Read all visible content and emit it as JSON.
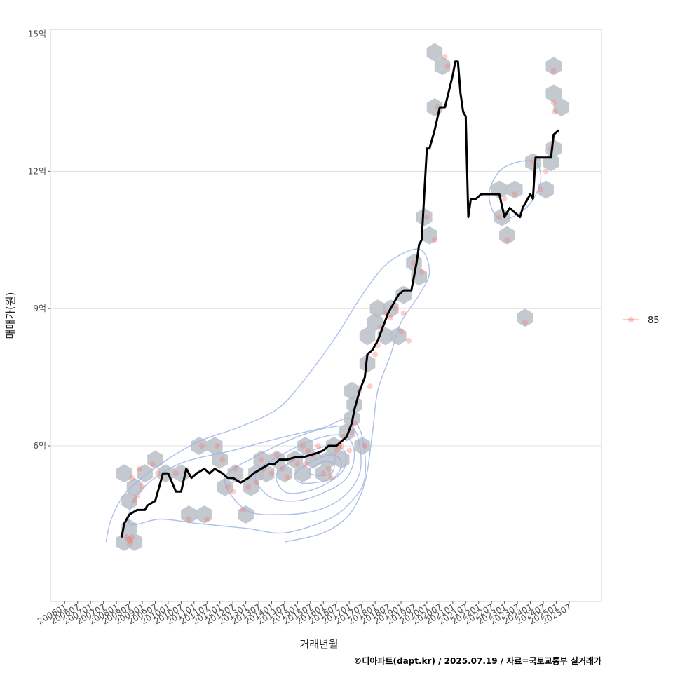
{
  "chart_data": {
    "type": "scatter",
    "xlabel": "거래년월",
    "ylabel": "매매가(원)",
    "caption": "©디아파트(dapt.kr) / 2025.07.19 / 자료=국토교통부 실거래가",
    "x_ticks": [
      "200601",
      "200607",
      "200701",
      "200707",
      "200801",
      "200807",
      "200901",
      "200907",
      "201001",
      "201007",
      "201101",
      "201107",
      "201201",
      "201207",
      "201301",
      "201307",
      "201401",
      "201407",
      "201501",
      "201507",
      "201601",
      "201607",
      "201701",
      "201707",
      "201801",
      "201807",
      "201901",
      "201907",
      "202001",
      "202007",
      "202101",
      "202107",
      "202201",
      "202207",
      "202301",
      "202307",
      "202401",
      "202407",
      "202501",
      "202507"
    ],
    "y_ticks": [
      {
        "value": 6,
        "label": "6억"
      },
      {
        "value": 9,
        "label": "9억"
      },
      {
        "value": 12,
        "label": "12억"
      },
      {
        "value": 15,
        "label": "15억"
      }
    ],
    "ylim": [
      2.6,
      15.1
    ],
    "xlim": [
      2005.25,
      2026.55
    ],
    "grid": true,
    "legend": {
      "position": "right",
      "entries": [
        {
          "name": "85",
          "color": "#F8766D"
        }
      ]
    },
    "points": [
      [
        2008.2,
        4.0
      ],
      [
        2008.3,
        3.95
      ],
      [
        2008.4,
        4.0
      ],
      [
        2008.35,
        3.9
      ],
      [
        2008.5,
        4.8
      ],
      [
        2008.6,
        4.9
      ],
      [
        2008.4,
        5.3
      ],
      [
        2008.7,
        5.5
      ],
      [
        2008.8,
        5.1
      ],
      [
        2009.2,
        5.6
      ],
      [
        2009.4,
        5.4
      ],
      [
        2010.1,
        5.4
      ],
      [
        2010.6,
        4.4
      ],
      [
        2011.1,
        6.0
      ],
      [
        2011.3,
        4.4
      ],
      [
        2011.7,
        6.0
      ],
      [
        2011.9,
        5.7
      ],
      [
        2012.1,
        5.1
      ],
      [
        2012.3,
        5.0
      ],
      [
        2012.4,
        5.5
      ],
      [
        2012.7,
        4.6
      ],
      [
        2012.9,
        5.1
      ],
      [
        2013.2,
        5.2
      ],
      [
        2013.4,
        5.7
      ],
      [
        2013.5,
        5.5
      ],
      [
        2013.8,
        5.4
      ],
      [
        2014.0,
        5.8
      ],
      [
        2014.2,
        5.5
      ],
      [
        2014.4,
        5.3
      ],
      [
        2014.6,
        5.7
      ],
      [
        2014.8,
        5.6
      ],
      [
        2015.0,
        6.0
      ],
      [
        2015.1,
        5.6
      ],
      [
        2015.2,
        5.9
      ],
      [
        2015.4,
        5.8
      ],
      [
        2015.6,
        6.0
      ],
      [
        2015.8,
        5.4
      ],
      [
        2016.0,
        5.5
      ],
      [
        2016.1,
        5.3
      ],
      [
        2016.3,
        5.9
      ],
      [
        2016.4,
        6.0
      ],
      [
        2016.5,
        6.0
      ],
      [
        2016.6,
        6.2
      ],
      [
        2016.8,
        5.9
      ],
      [
        2016.9,
        6.3
      ],
      [
        2017.0,
        6.5
      ],
      [
        2017.2,
        7.2
      ],
      [
        2017.4,
        6.0
      ],
      [
        2017.6,
        7.3
      ],
      [
        2017.8,
        8.0
      ],
      [
        2017.9,
        8.2
      ],
      [
        2018.0,
        8.6
      ],
      [
        2018.2,
        8.9
      ],
      [
        2018.4,
        8.8
      ],
      [
        2018.6,
        9.0
      ],
      [
        2018.8,
        8.5
      ],
      [
        2018.9,
        8.9
      ],
      [
        2019.1,
        8.3
      ],
      [
        2019.3,
        10.0
      ],
      [
        2019.6,
        9.8
      ],
      [
        2019.8,
        11.0
      ],
      [
        2020.1,
        10.5
      ],
      [
        2020.2,
        13.4
      ],
      [
        2020.5,
        14.5
      ],
      [
        2020.6,
        14.3
      ],
      [
        2022.6,
        11.0
      ],
      [
        2022.8,
        11.4
      ],
      [
        2022.9,
        10.5
      ],
      [
        2023.2,
        11.5
      ],
      [
        2023.6,
        8.7
      ],
      [
        2023.9,
        12.2
      ],
      [
        2024.2,
        11.6
      ],
      [
        2024.4,
        12.0
      ],
      [
        2024.6,
        12.5
      ],
      [
        2024.7,
        13.5
      ],
      [
        2024.75,
        13.3
      ],
      [
        2024.7,
        14.2
      ]
    ],
    "hexbins": [
      [
        2008.1,
        3.9
      ],
      [
        2008.3,
        4.2
      ],
      [
        2008.5,
        3.9
      ],
      [
        2008.3,
        4.8
      ],
      [
        2008.1,
        5.4
      ],
      [
        2008.5,
        5.1
      ],
      [
        2008.9,
        5.4
      ],
      [
        2009.3,
        5.7
      ],
      [
        2009.7,
        5.4
      ],
      [
        2010.3,
        5.4
      ],
      [
        2010.6,
        4.5
      ],
      [
        2011.0,
        6.0
      ],
      [
        2011.2,
        4.5
      ],
      [
        2011.6,
        6.0
      ],
      [
        2011.8,
        5.7
      ],
      [
        2012.0,
        5.1
      ],
      [
        2012.4,
        5.4
      ],
      [
        2012.8,
        4.5
      ],
      [
        2013.0,
        5.1
      ],
      [
        2013.2,
        5.4
      ],
      [
        2013.4,
        5.7
      ],
      [
        2013.6,
        5.4
      ],
      [
        2014.0,
        5.7
      ],
      [
        2014.3,
        5.4
      ],
      [
        2014.7,
        5.7
      ],
      [
        2015.0,
        5.4
      ],
      [
        2015.1,
        6.0
      ],
      [
        2015.4,
        5.7
      ],
      [
        2015.8,
        5.4
      ],
      [
        2016.0,
        5.7
      ],
      [
        2016.2,
        6.0
      ],
      [
        2016.5,
        5.7
      ],
      [
        2016.7,
        6.3
      ],
      [
        2016.9,
        6.6
      ],
      [
        2016.9,
        7.2
      ],
      [
        2017.0,
        6.9
      ],
      [
        2017.3,
        6.0
      ],
      [
        2017.5,
        7.8
      ],
      [
        2017.5,
        8.4
      ],
      [
        2017.8,
        8.7
      ],
      [
        2017.9,
        9.0
      ],
      [
        2018.2,
        8.4
      ],
      [
        2018.4,
        9.0
      ],
      [
        2018.7,
        8.4
      ],
      [
        2018.9,
        9.3
      ],
      [
        2019.3,
        10.0
      ],
      [
        2019.5,
        9.7
      ],
      [
        2019.7,
        11.0
      ],
      [
        2019.9,
        10.6
      ],
      [
        2020.1,
        13.4
      ],
      [
        2020.1,
        14.6
      ],
      [
        2020.4,
        14.3
      ],
      [
        2022.6,
        11.6
      ],
      [
        2022.7,
        11.0
      ],
      [
        2022.9,
        10.6
      ],
      [
        2023.2,
        11.6
      ],
      [
        2023.6,
        8.8
      ],
      [
        2023.9,
        12.2
      ],
      [
        2024.4,
        11.6
      ],
      [
        2024.6,
        12.2
      ],
      [
        2024.7,
        12.5
      ],
      [
        2024.7,
        13.7
      ],
      [
        2024.7,
        14.3
      ],
      [
        2025.0,
        13.4
      ]
    ],
    "line": [
      [
        2008.0,
        4.0
      ],
      [
        2008.1,
        4.3
      ],
      [
        2008.3,
        4.5
      ],
      [
        2008.6,
        4.6
      ],
      [
        2008.9,
        4.6
      ],
      [
        2009.0,
        4.7
      ],
      [
        2009.3,
        4.8
      ],
      [
        2009.5,
        5.2
      ],
      [
        2009.6,
        5.4
      ],
      [
        2009.8,
        5.4
      ],
      [
        2010.1,
        5.0
      ],
      [
        2010.3,
        5.0
      ],
      [
        2010.5,
        5.5
      ],
      [
        2010.7,
        5.3
      ],
      [
        2010.9,
        5.4
      ],
      [
        2011.2,
        5.5
      ],
      [
        2011.4,
        5.4
      ],
      [
        2011.6,
        5.5
      ],
      [
        2011.9,
        5.4
      ],
      [
        2012.1,
        5.3
      ],
      [
        2012.3,
        5.3
      ],
      [
        2012.6,
        5.2
      ],
      [
        2012.9,
        5.3
      ],
      [
        2013.1,
        5.4
      ],
      [
        2013.4,
        5.5
      ],
      [
        2013.7,
        5.6
      ],
      [
        2013.9,
        5.6
      ],
      [
        2014.1,
        5.7
      ],
      [
        2014.4,
        5.7
      ],
      [
        2014.7,
        5.75
      ],
      [
        2015.0,
        5.75
      ],
      [
        2015.3,
        5.8
      ],
      [
        2015.6,
        5.85
      ],
      [
        2015.8,
        5.9
      ],
      [
        2016.0,
        6.0
      ],
      [
        2016.3,
        6.0
      ],
      [
        2016.5,
        6.1
      ],
      [
        2016.7,
        6.2
      ],
      [
        2016.9,
        6.5
      ],
      [
        2017.0,
        6.8
      ],
      [
        2017.2,
        7.2
      ],
      [
        2017.4,
        7.5
      ],
      [
        2017.5,
        8.0
      ],
      [
        2017.7,
        8.1
      ],
      [
        2017.9,
        8.3
      ],
      [
        2018.1,
        8.6
      ],
      [
        2018.3,
        8.9
      ],
      [
        2018.5,
        9.1
      ],
      [
        2018.7,
        9.3
      ],
      [
        2018.9,
        9.4
      ],
      [
        2019.2,
        9.4
      ],
      [
        2019.4,
        10.0
      ],
      [
        2019.5,
        10.4
      ],
      [
        2019.6,
        10.5
      ],
      [
        2019.7,
        11.5
      ],
      [
        2019.8,
        12.5
      ],
      [
        2019.9,
        12.5
      ],
      [
        2020.1,
        12.9
      ],
      [
        2020.3,
        13.4
      ],
      [
        2020.5,
        13.4
      ],
      [
        2020.8,
        14.1
      ],
      [
        2020.9,
        14.4
      ],
      [
        2021.0,
        14.4
      ],
      [
        2021.1,
        13.7
      ],
      [
        2021.2,
        13.3
      ],
      [
        2021.3,
        13.2
      ],
      [
        2021.4,
        11.0
      ],
      [
        2021.5,
        11.4
      ],
      [
        2021.7,
        11.4
      ],
      [
        2021.9,
        11.5
      ],
      [
        2022.1,
        11.5
      ],
      [
        2022.4,
        11.5
      ],
      [
        2022.6,
        11.5
      ],
      [
        2022.8,
        11.0
      ],
      [
        2023.0,
        11.2
      ],
      [
        2023.2,
        11.1
      ],
      [
        2023.4,
        11.0
      ],
      [
        2023.5,
        11.2
      ],
      [
        2023.8,
        11.5
      ],
      [
        2023.9,
        11.4
      ],
      [
        2024.0,
        12.3
      ],
      [
        2024.3,
        12.3
      ],
      [
        2024.6,
        12.3
      ],
      [
        2024.7,
        12.8
      ],
      [
        2024.9,
        12.9
      ]
    ],
    "density_contours": [
      [
        [
          2007.4,
          3.9
        ],
        [
          2007.6,
          4.4
        ],
        [
          2008.2,
          5.0
        ],
        [
          2009.5,
          5.6
        ],
        [
          2011.0,
          6.1
        ],
        [
          2012.5,
          6.4
        ],
        [
          2014.0,
          6.8
        ],
        [
          2015.0,
          7.4
        ],
        [
          2016.3,
          8.4
        ],
        [
          2017.3,
          9.3
        ],
        [
          2018.3,
          10.0
        ],
        [
          2019.5,
          10.3
        ],
        [
          2019.9,
          9.8
        ],
        [
          2019.5,
          9.3
        ],
        [
          2018.8,
          8.7
        ],
        [
          2018.4,
          8.0
        ],
        [
          2017.9,
          7.2
        ],
        [
          2017.7,
          6.3
        ],
        [
          2017.4,
          5.2
        ],
        [
          2016.8,
          4.5
        ],
        [
          2015.8,
          4.1
        ],
        [
          2014.3,
          3.9
        ]
      ],
      [
        [
          2008.3,
          4.3
        ],
        [
          2008.7,
          5.0
        ],
        [
          2010.2,
          5.6
        ],
        [
          2012.3,
          5.9
        ],
        [
          2014.3,
          6.2
        ],
        [
          2015.8,
          6.4
        ],
        [
          2016.8,
          6.6
        ],
        [
          2017.3,
          6.2
        ],
        [
          2017.4,
          5.3
        ],
        [
          2016.9,
          4.8
        ],
        [
          2016.0,
          4.4
        ],
        [
          2014.3,
          4.1
        ],
        [
          2012.8,
          4.2
        ],
        [
          2011.0,
          4.3
        ],
        [
          2009.5,
          4.4
        ]
      ],
      [
        [
          2012.0,
          5.3
        ],
        [
          2013.3,
          5.8
        ],
        [
          2014.8,
          6.2
        ],
        [
          2016.0,
          6.4
        ],
        [
          2016.9,
          6.4
        ],
        [
          2017.2,
          6.0
        ],
        [
          2017.2,
          5.4
        ],
        [
          2016.6,
          4.9
        ],
        [
          2015.6,
          4.6
        ],
        [
          2014.2,
          4.5
        ],
        [
          2012.8,
          4.6
        ]
      ],
      [
        [
          2013.2,
          5.4
        ],
        [
          2014.5,
          5.9
        ],
        [
          2015.8,
          6.2
        ],
        [
          2016.7,
          6.2
        ],
        [
          2017.0,
          5.8
        ],
        [
          2016.7,
          5.3
        ],
        [
          2015.9,
          5.0
        ],
        [
          2014.8,
          4.8
        ],
        [
          2013.7,
          4.9
        ]
      ],
      [
        [
          2014.0,
          5.4
        ],
        [
          2015.0,
          5.8
        ],
        [
          2016.0,
          6.0
        ],
        [
          2016.6,
          5.9
        ],
        [
          2016.6,
          5.5
        ],
        [
          2016.0,
          5.2
        ],
        [
          2015.1,
          5.0
        ],
        [
          2014.3,
          5.0
        ]
      ],
      [
        [
          2014.7,
          5.4
        ],
        [
          2015.5,
          5.7
        ],
        [
          2016.2,
          5.8
        ],
        [
          2016.5,
          5.6
        ],
        [
          2016.2,
          5.3
        ],
        [
          2015.5,
          5.2
        ],
        [
          2014.9,
          5.2
        ]
      ],
      [
        [
          2015.2,
          5.45
        ],
        [
          2015.8,
          5.65
        ],
        [
          2016.2,
          5.6
        ],
        [
          2016.1,
          5.4
        ],
        [
          2015.6,
          5.35
        ]
      ],
      [
        [
          2022.2,
          11.5
        ],
        [
          2022.6,
          12.0
        ],
        [
          2023.3,
          12.2
        ],
        [
          2024.0,
          12.2
        ],
        [
          2024.2,
          11.8
        ],
        [
          2023.8,
          11.3
        ],
        [
          2023.1,
          11.0
        ],
        [
          2022.5,
          11.0
        ]
      ]
    ],
    "colors": {
      "point": "#F8766D",
      "hex": "#B9C0C6",
      "line": "#000000",
      "contour": "#9FB4E8",
      "grid": "#E0E0E0",
      "panel_border": "#CCCCCC"
    }
  }
}
